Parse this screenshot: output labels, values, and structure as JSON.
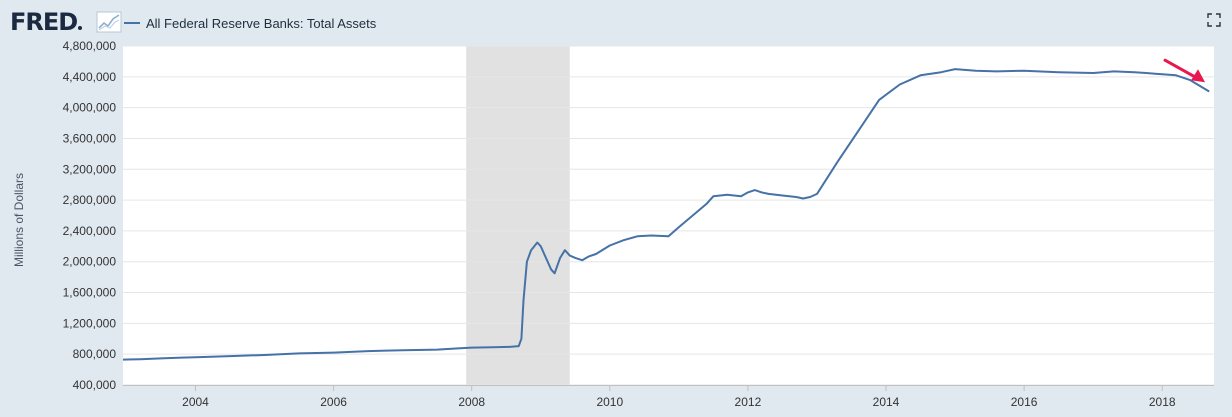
{
  "header": {
    "logo_text": "FRED",
    "legend_label": "All Federal Reserve Banks: Total Assets",
    "fullscreen_icon": "fullscreen-icon",
    "logo_chart_icon": "fred-chart-icon"
  },
  "colors": {
    "series": "#4572a7",
    "background": "#e1e9f0",
    "plot_bg": "#ffffff",
    "recession": "#e1e1e1",
    "arrow": "#e8174f"
  },
  "chart_data": {
    "type": "line",
    "title": "",
    "ylabel": "Millions of Dollars",
    "xlabel": "",
    "xlim": [
      2002.95,
      2018.75
    ],
    "ylim": [
      400000,
      4800000
    ],
    "yticks": [
      400000,
      800000,
      1200000,
      1600000,
      2000000,
      2400000,
      2800000,
      3200000,
      3600000,
      4000000,
      4400000,
      4800000
    ],
    "ytick_labels": [
      "400,000",
      "800,000",
      "1,200,000",
      "1,600,000",
      "2,000,000",
      "2,400,000",
      "2,800,000",
      "3,200,000",
      "3,600,000",
      "4,000,000",
      "4,400,000",
      "4,800,000"
    ],
    "xticks": [
      2004,
      2006,
      2008,
      2010,
      2012,
      2014,
      2016,
      2018
    ],
    "xtick_labels": [
      "2004",
      "2006",
      "2008",
      "2010",
      "2012",
      "2014",
      "2016",
      "2018"
    ],
    "grid": "horizontal",
    "recession_shading": [
      [
        2007.92,
        2009.42
      ]
    ],
    "annotation": "arrow pointing to latest decline",
    "series": [
      {
        "x": [
          2002.95,
          2003.2,
          2003.5,
          2003.8,
          2004.0,
          2004.5,
          2005.0,
          2005.5,
          2006.0,
          2006.5,
          2007.0,
          2007.5,
          2007.8,
          2008.0,
          2008.3,
          2008.55,
          2008.68,
          2008.72,
          2008.75,
          2008.8,
          2008.86,
          2008.95,
          2009.0,
          2009.05,
          2009.15,
          2009.2,
          2009.28,
          2009.35,
          2009.42,
          2009.5,
          2009.6,
          2009.7,
          2009.8,
          2010.0,
          2010.2,
          2010.4,
          2010.6,
          2010.85,
          2011.0,
          2011.2,
          2011.4,
          2011.5,
          2011.7,
          2011.9,
          2012.0,
          2012.1,
          2012.2,
          2012.3,
          2012.5,
          2012.7,
          2012.8,
          2012.9,
          2013.0,
          2013.3,
          2013.6,
          2013.9,
          2014.2,
          2014.5,
          2014.8,
          2015.0,
          2015.3,
          2015.6,
          2016.0,
          2016.5,
          2017.0,
          2017.3,
          2017.6,
          2017.9,
          2018.2,
          2018.4,
          2018.55,
          2018.68
        ],
        "y": [
          730000,
          735000,
          745000,
          755000,
          760000,
          775000,
          790000,
          810000,
          820000,
          840000,
          850000,
          860000,
          875000,
          885000,
          890000,
          895000,
          905000,
          1000000,
          1500000,
          2000000,
          2150000,
          2250000,
          2200000,
          2100000,
          1900000,
          1850000,
          2050000,
          2150000,
          2080000,
          2050000,
          2020000,
          2070000,
          2100000,
          2210000,
          2280000,
          2330000,
          2340000,
          2330000,
          2450000,
          2600000,
          2750000,
          2850000,
          2870000,
          2850000,
          2900000,
          2930000,
          2900000,
          2880000,
          2860000,
          2840000,
          2820000,
          2840000,
          2880000,
          3300000,
          3700000,
          4100000,
          4300000,
          4420000,
          4460000,
          4500000,
          4480000,
          4470000,
          4480000,
          4460000,
          4450000,
          4470000,
          4460000,
          4440000,
          4420000,
          4360000,
          4280000,
          4210000
        ]
      }
    ]
  }
}
